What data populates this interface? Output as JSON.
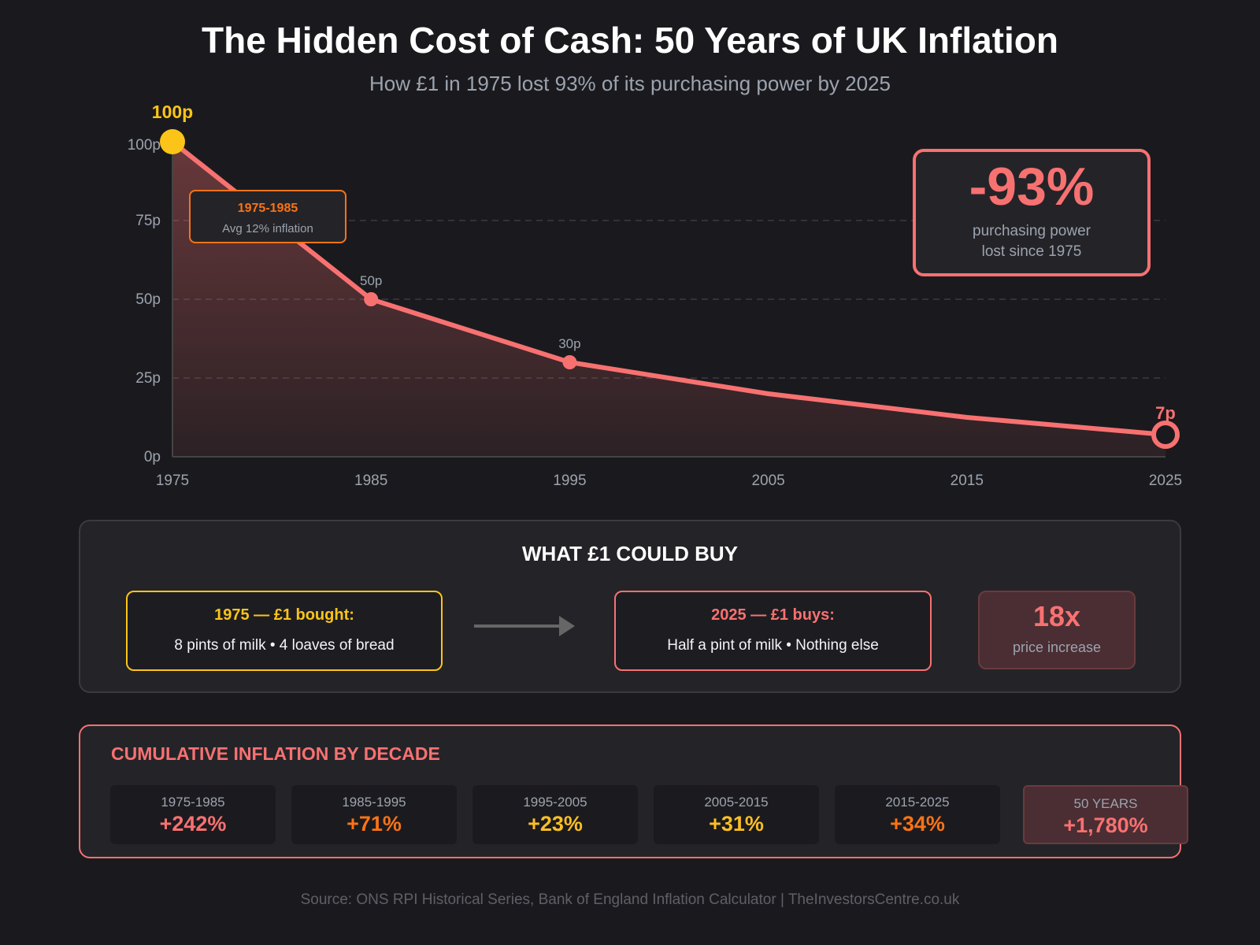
{
  "title": "The Hidden Cost of Cash: 50 Years of UK Inflation",
  "subtitle": "How £1 in 1975 lost 93% of its purchasing power by 2025",
  "colors": {
    "background": "#1a1a1e",
    "line": "#f87171",
    "start": "#fcc419",
    "accent": "#f97316",
    "muted": "#9ca3af"
  },
  "chart_data": {
    "type": "area",
    "x": [
      1975,
      1985,
      1995,
      2005,
      2015,
      2025
    ],
    "values": [
      100,
      50,
      30,
      20,
      12.5,
      7
    ],
    "ylim": [
      0,
      100
    ],
    "xlim": [
      1975,
      2025
    ],
    "y_ticks": [
      "0p",
      "25p",
      "50p",
      "75p",
      "100p"
    ],
    "y_tick_values": [
      0,
      25,
      50,
      75,
      100
    ],
    "x_ticks": [
      "1975",
      "1985",
      "1995",
      "2005",
      "2015",
      "2025"
    ],
    "point_labels": [
      {
        "x": 1975,
        "label": "100p"
      },
      {
        "x": 1985,
        "label": "50p"
      },
      {
        "x": 1995,
        "label": "30p"
      },
      {
        "x": 2025,
        "label": "7p"
      }
    ],
    "grid": "horizontal dashed",
    "annotation": {
      "title": "1975-1985",
      "text": "Avg 12% inflation"
    }
  },
  "callout": {
    "value": "-93%",
    "line1": "purchasing power",
    "line2": "lost since 1975"
  },
  "buy": {
    "title": "WHAT £1 COULD BUY",
    "then": {
      "title": "1975 — £1 bought:",
      "text": "8 pints of milk • 4 loaves of bread"
    },
    "now": {
      "title": "2025 — £1 buys:",
      "text": "Half a pint of milk • Nothing else"
    },
    "multiplier": {
      "value": "18x",
      "label": "price increase"
    }
  },
  "decades": {
    "title": "CUMULATIVE INFLATION BY DECADE",
    "items": [
      {
        "period": "1975-1985",
        "value": "+242%",
        "color": "#f87171"
      },
      {
        "period": "1985-1995",
        "value": "+71%",
        "color": "#f97316"
      },
      {
        "period": "1995-2005",
        "value": "+23%",
        "color": "#fbbf24"
      },
      {
        "period": "2005-2015",
        "value": "+31%",
        "color": "#fbbf24"
      },
      {
        "period": "2015-2025",
        "value": "+34%",
        "color": "#f97316"
      },
      {
        "period": "50 YEARS",
        "value": "+1,780%",
        "color": "#f87171"
      }
    ]
  },
  "footer": "Source: ONS RPI Historical Series, Bank of England Inflation Calculator | TheInvestorsCentre.co.uk"
}
